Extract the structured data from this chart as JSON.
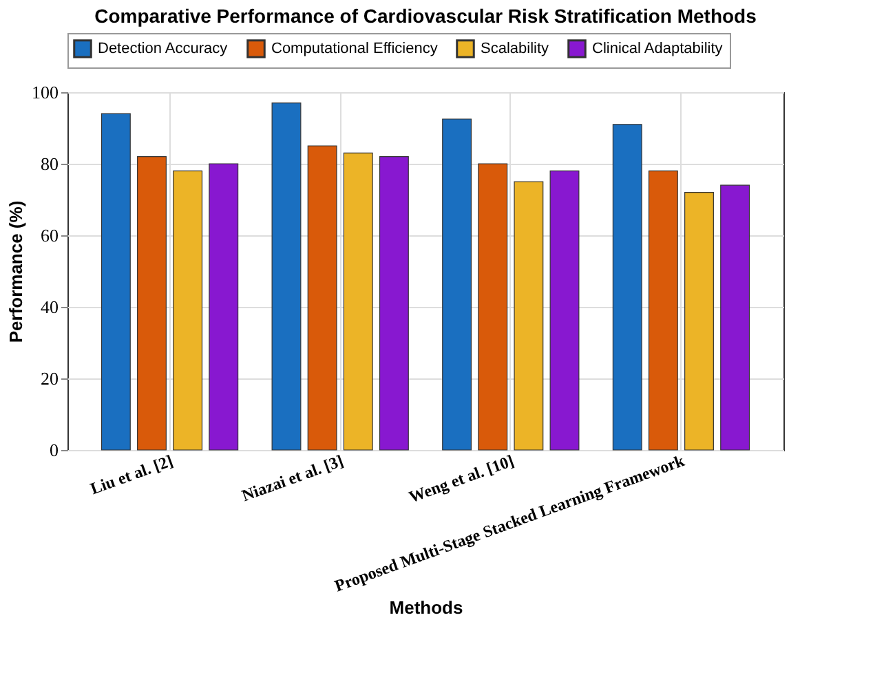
{
  "chart_data": {
    "type": "bar",
    "title": "Comparative Performance of Cardiovascular Risk Stratification Methods",
    "xlabel": "Methods",
    "ylabel": "Performance (%)",
    "categories": [
      "Liu et al. [2]",
      "Niazai et al. [3]",
      "Weng et al. [10]",
      "Proposed Multi-Stage Stacked Learning Framework"
    ],
    "series": [
      {
        "name": "Detection Accuracy",
        "color": "#1a6fc0",
        "values": [
          94,
          97,
          92.5,
          91
        ]
      },
      {
        "name": "Computational Efficiency",
        "color": "#d95a0a",
        "values": [
          82,
          85,
          80,
          78
        ]
      },
      {
        "name": "Scalability",
        "color": "#ecb427",
        "values": [
          78,
          83,
          75,
          72
        ]
      },
      {
        "name": "Clinical Adaptability",
        "color": "#8818d0",
        "values": [
          80,
          82,
          78,
          74
        ]
      }
    ],
    "ylim": [
      0,
      100
    ],
    "yticks": [
      0,
      20,
      40,
      60,
      80,
      100
    ],
    "grid": true,
    "legend": "top"
  }
}
